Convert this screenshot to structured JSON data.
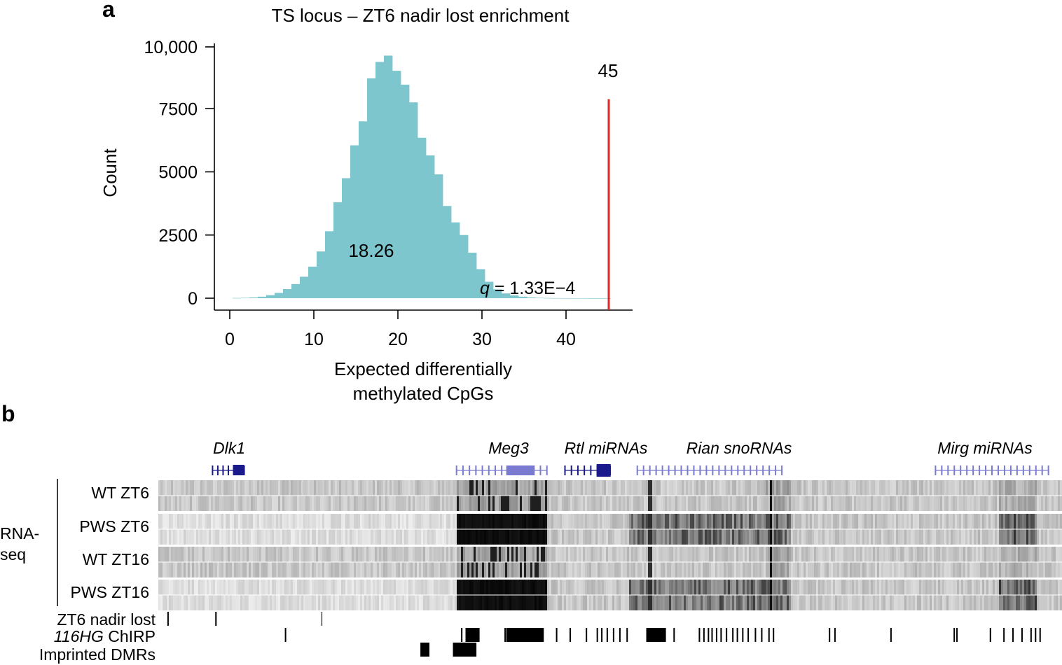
{
  "panel_a_label": "a",
  "panel_b_label": "b",
  "chart_data": [
    {
      "type": "bar",
      "title": "TS locus – ZT6 nadir lost enrichment",
      "xlabel_lines": [
        "Expected differentially",
        "methylated CpGs"
      ],
      "ylabel": "Count",
      "xlim": [
        -2,
        48
      ],
      "ylim": [
        0,
        10000
      ],
      "x_ticks": [
        0,
        10,
        20,
        30,
        40
      ],
      "x_tick_labels": [
        "0",
        "10",
        "20",
        "30",
        "40"
      ],
      "y_ticks": [
        0,
        2500,
        5000,
        7500,
        10000
      ],
      "y_tick_labels": [
        "0",
        "2500",
        "5000",
        "7500",
        "10,000"
      ],
      "bin_width": 1,
      "bins_start": [
        0,
        1,
        2,
        3,
        4,
        5,
        6,
        7,
        8,
        9,
        10,
        11,
        12,
        13,
        14,
        15,
        16,
        17,
        18,
        19,
        20,
        21,
        22,
        23,
        24,
        25,
        26,
        27,
        28,
        29,
        30,
        31,
        32,
        33,
        34,
        35,
        36,
        37,
        38,
        39,
        40,
        41,
        42,
        43,
        44
      ],
      "counts": [
        8,
        15,
        30,
        60,
        120,
        210,
        360,
        560,
        850,
        1250,
        1850,
        2650,
        3800,
        4750,
        6050,
        7000,
        8700,
        9350,
        9600,
        9000,
        8450,
        7750,
        6350,
        5650,
        4900,
        3650,
        3000,
        2500,
        1800,
        1150,
        650,
        350,
        190,
        110,
        60,
        30,
        15,
        8,
        4,
        2,
        1,
        1,
        0,
        0,
        0
      ],
      "mean_label": "18.26",
      "observed_value": 45,
      "observed_label": "45",
      "observed_line_top_count": 7900,
      "q_letter": "q",
      "q_rest": " = 1.33E−4",
      "bar_color": "#7ec6ce",
      "observed_color": "#d42a2a"
    },
    {
      "type": "genome-browser",
      "genes": [
        {
          "label": "Dlk1",
          "start": 0.06,
          "end": 0.095
        },
        {
          "label": "Meg3",
          "start": 0.33,
          "end": 0.43
        },
        {
          "label": "Rtl miRNAs",
          "start": 0.45,
          "end": 0.5
        },
        {
          "label": "Rian snoRNAs",
          "start": 0.53,
          "end": 0.69
        },
        {
          "label": "Mirg miRNAs",
          "start": 0.86,
          "end": 0.985
        }
      ],
      "rnaseq_group_label_lines": [
        "RNA-",
        "seq"
      ],
      "rnaseq_tracks": [
        {
          "label": "WT ZT6",
          "condition": "wt"
        },
        {
          "label": "PWS ZT6",
          "condition": "pws"
        },
        {
          "label": "WT ZT16",
          "condition": "wt"
        },
        {
          "label": "PWS ZT16",
          "condition": "pws"
        }
      ],
      "feature_tracks": [
        {
          "label": "ZT6 nadir lost",
          "italic_prefix": "",
          "positions": [
            0.01,
            0.063,
            0.18
          ]
        },
        {
          "label": " ChIRP",
          "italic_prefix": "116HG",
          "positions": [
            0.14,
            0.335,
            0.34,
            0.345,
            0.35,
            0.383,
            0.39,
            0.397,
            0.404,
            0.411,
            0.418,
            0.425,
            0.44,
            0.455,
            0.473,
            0.485,
            0.49,
            0.496,
            0.503,
            0.51,
            0.518,
            0.54,
            0.545,
            0.549,
            0.553,
            0.56,
            0.57,
            0.598,
            0.603,
            0.608,
            0.612,
            0.617,
            0.622,
            0.628,
            0.635,
            0.64,
            0.646,
            0.652,
            0.66,
            0.667,
            0.675,
            0.68,
            0.742,
            0.748,
            0.81,
            0.88,
            0.883,
            0.92,
            0.935,
            0.945,
            0.955,
            0.965,
            0.97,
            0.975
          ]
        },
        {
          "label": "Imprinted DMRs",
          "italic_prefix": "",
          "blocks": [
            [
              0.29,
              0.3
            ],
            [
              0.326,
              0.352
            ]
          ]
        }
      ]
    }
  ]
}
